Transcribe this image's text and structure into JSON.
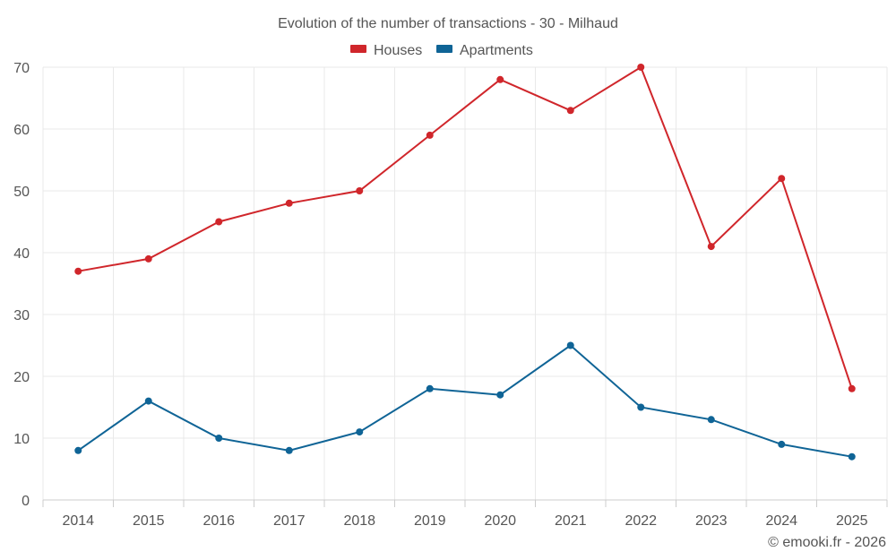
{
  "chart_data": {
    "type": "line",
    "title": "Evolution of the number of transactions - 30 - Milhaud",
    "categories": [
      "2014",
      "2015",
      "2016",
      "2017",
      "2018",
      "2019",
      "2020",
      "2021",
      "2022",
      "2023",
      "2024",
      "2025"
    ],
    "series": [
      {
        "name": "Houses",
        "color": "#d0262b",
        "values": [
          37,
          39,
          45,
          48,
          50,
          59,
          68,
          63,
          70,
          41,
          52,
          18
        ]
      },
      {
        "name": "Apartments",
        "color": "#0f6496",
        "values": [
          8,
          16,
          10,
          8,
          11,
          18,
          17,
          25,
          15,
          13,
          9,
          7
        ]
      }
    ],
    "ylim": [
      0,
      70
    ],
    "yticks": [
      0,
      10,
      20,
      30,
      40,
      50,
      60,
      70
    ],
    "xlabel": "",
    "ylabel": "",
    "legend_position": "top-center",
    "grid": true
  },
  "copyright": "© emooki.fr - 2026"
}
